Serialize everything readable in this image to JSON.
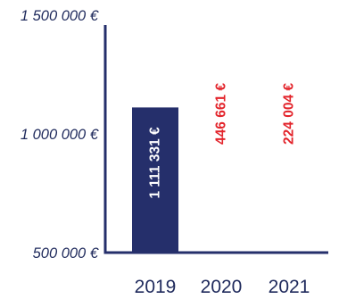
{
  "chart_data": {
    "type": "bar",
    "categories": [
      "2019",
      "2020",
      "2021"
    ],
    "values": [
      1111331,
      446661,
      224004
    ],
    "data_labels": [
      "1 111 331 €",
      "446 661 €",
      "224 004 €"
    ],
    "y_ticks": [
      {
        "value": 500000,
        "label": "500 000 €"
      },
      {
        "value": 1000000,
        "label": "1 000 000 €"
      },
      {
        "value": 1500000,
        "label": "1 500 000 €"
      }
    ],
    "title": "",
    "xlabel": "",
    "ylabel": "",
    "grid": false,
    "colors": {
      "bar": "#252f6b",
      "axis": "#252f6b",
      "tick_text": "#1f2a5c",
      "label_inside": "#ffffff",
      "label_outside": "#e3242b"
    }
  }
}
